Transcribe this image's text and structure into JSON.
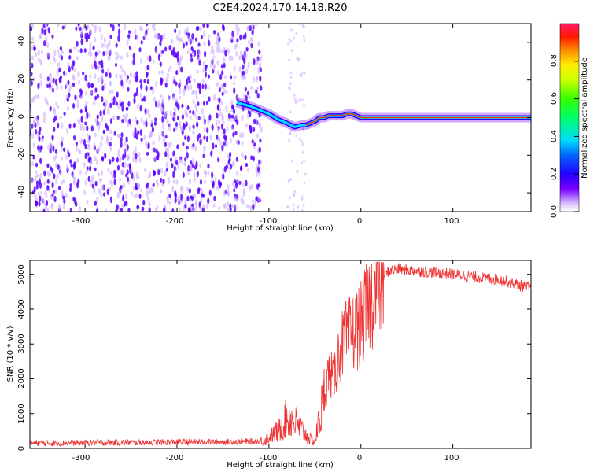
{
  "title": "C2E4.2024.170.14.18.R20",
  "colors": {
    "snr_line": "#ee3333",
    "ridge": "#ff2a00",
    "dot_dark": "#5a00ff",
    "dot_light": "#c9a8ff"
  },
  "chart_data": [
    {
      "type": "heatmap",
      "xlabel": "Height of straight line (km)",
      "ylabel": "Frequency (Hz)",
      "xlim": [
        -360,
        185
      ],
      "ylim": [
        -50,
        50
      ],
      "xticks": [
        -300,
        -200,
        -100,
        0,
        100
      ],
      "yticks": [
        -40,
        -20,
        0,
        20,
        40
      ],
      "noise_region_x": [
        -360,
        -120
      ],
      "ridge": {
        "x": [
          -135,
          -120,
          -110,
          -100,
          -90,
          -80,
          -72,
          -65,
          -60,
          -55,
          -50,
          -45,
          -40,
          -35,
          -30,
          -25,
          -20,
          -15,
          -10,
          -5,
          0,
          100,
          185
        ],
        "y": [
          8,
          6,
          4,
          2,
          -1,
          -3,
          -5,
          -4,
          -4,
          -3,
          -2,
          0,
          0,
          1,
          1,
          1,
          1,
          2,
          2,
          1,
          0,
          0,
          0
        ]
      },
      "colorbar": {
        "label": "Normalized spectral amplitude",
        "range": [
          0.0,
          1.0
        ],
        "ticks": [
          0.0,
          0.2,
          0.4,
          0.6,
          0.8
        ],
        "tick_labels": [
          "0.0",
          "0.2",
          "0.4",
          "0.6",
          "0.8"
        ]
      },
      "grid": false
    },
    {
      "type": "line",
      "xlabel": "Height of straight line (km)",
      "ylabel": "SNR (10 * v/v)",
      "xlim": [
        -360,
        185
      ],
      "ylim": [
        0,
        5400
      ],
      "xticks": [
        -300,
        -200,
        -100,
        0,
        100
      ],
      "yticks": [
        0,
        1000,
        2000,
        3000,
        4000,
        5000
      ],
      "envelope": {
        "x": [
          -360,
          -110,
          -100,
          -90,
          -80,
          -70,
          -60,
          -55,
          -50,
          -40,
          -35,
          -30,
          -25,
          -20,
          -15,
          -10,
          -5,
          0,
          10,
          20,
          30,
          40,
          60,
          100,
          150,
          185
        ],
        "y": [
          150,
          200,
          300,
          500,
          900,
          700,
          400,
          250,
          200,
          1500,
          2200,
          2000,
          2600,
          3000,
          3200,
          3300,
          3400,
          3600,
          4200,
          4700,
          5100,
          5150,
          5100,
          5000,
          4850,
          4600
        ]
      },
      "grid": false
    }
  ],
  "tick_labels": {
    "x": [
      "-300",
      "-200",
      "-100",
      "0",
      "100"
    ],
    "y_top": [
      "-40",
      "-20",
      "0",
      "20",
      "40"
    ],
    "y_bottom": [
      "0",
      "1000",
      "2000",
      "3000",
      "4000",
      "5000"
    ]
  }
}
